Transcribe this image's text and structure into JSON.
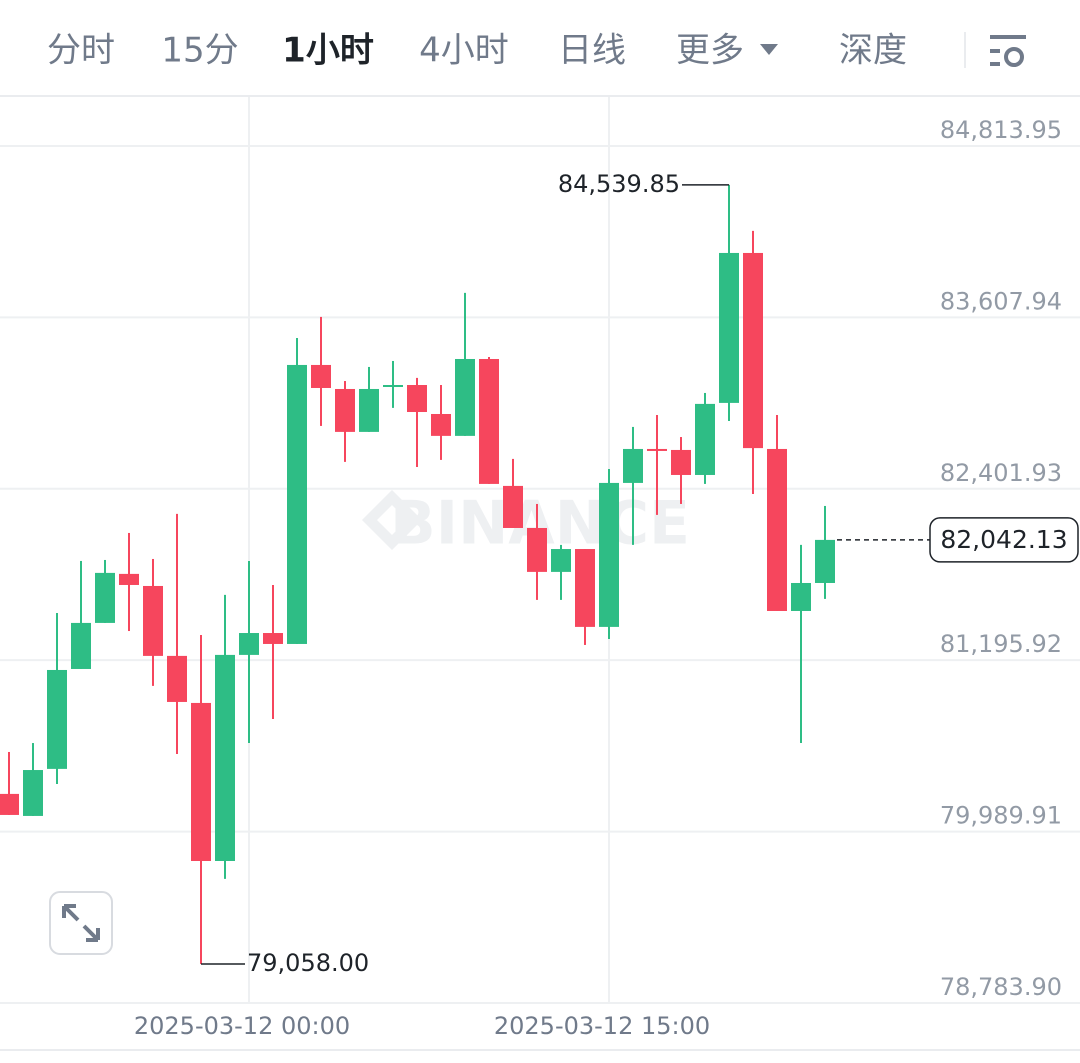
{
  "tabs": [
    {
      "label": "分时"
    },
    {
      "label": "15分"
    },
    {
      "label": "1小时",
      "active": true
    },
    {
      "label": "4小时"
    },
    {
      "label": "日线"
    },
    {
      "label": "更多"
    },
    {
      "label": "深度"
    }
  ],
  "chart_data": {
    "type": "candlestick",
    "watermark": "BINANCE",
    "grid": true,
    "up_color": "#2ebd85",
    "down_color": "#f6465d",
    "categories": [
      null,
      null,
      null,
      null,
      null,
      null,
      null,
      null,
      null,
      null,
      "2025-03-12 00:00",
      null,
      null,
      null,
      null,
      null,
      null,
      null,
      null,
      null,
      null,
      null,
      null,
      null,
      null,
      "2025-03-12 15:00",
      null,
      null,
      null,
      null,
      null,
      null,
      null,
      null,
      null
    ],
    "open": [
      80255,
      80100,
      80431,
      81134,
      81458,
      81803,
      81718,
      81226,
      80895,
      79783,
      81233,
      81387,
      81310,
      83273,
      83104,
      82802,
      83118,
      83132,
      82928,
      82774,
      83315,
      82422,
      82126,
      81817,
      81978,
      81430,
      82443,
      82682,
      82675,
      82499,
      83006,
      84061,
      82682,
      81542,
      81739
    ],
    "high": [
      80550,
      80613,
      81528,
      81894,
      81901,
      82091,
      81908,
      82225,
      81373,
      81655,
      81894,
      81725,
      83463,
      83611,
      83160,
      83259,
      83301,
      83182,
      83132,
      83780,
      83329,
      82612,
      82295,
      82007,
      81978,
      82541,
      82837,
      82921,
      82766,
      83076,
      84539.85,
      84216,
      82921,
      82007,
      82281
    ],
    "low": [
      80107,
      80100,
      80325,
      81134,
      81458,
      81401,
      81015,
      80536,
      79058,
      79657,
      80613,
      80782,
      81310,
      82844,
      82591,
      82802,
      82971,
      82555,
      82605,
      82774,
      82436,
      82126,
      81620,
      81620,
      81303,
      81345,
      82007,
      82218,
      82295,
      82436,
      82879,
      82365,
      81542,
      80613,
      81627
    ],
    "close": [
      80107,
      80423,
      81127,
      81458,
      81810,
      81725,
      81226,
      80902,
      79783,
      81233,
      81387,
      81310,
      83273,
      83111,
      82802,
      83104,
      83132,
      82942,
      82774,
      83315,
      82436,
      82126,
      81817,
      81978,
      81430,
      82443,
      82682,
      82668,
      82499,
      82999,
      84061,
      82688,
      81542,
      81739,
      82042.13
    ],
    "ylim": [
      78783.9,
      85158.3
    ],
    "yticks": [
      {
        "value": 84813.95,
        "label": "84,813.95"
      },
      {
        "value": 83607.94,
        "label": "83,607.94"
      },
      {
        "value": 82401.93,
        "label": "82,401.93"
      },
      {
        "value": 81195.92,
        "label": "81,195.92"
      },
      {
        "value": 79989.91,
        "label": "79,989.91"
      },
      {
        "value": 78783.9,
        "label": "78,783.90"
      }
    ],
    "high_label": {
      "value": 84539.85,
      "label": "84,539.85"
    },
    "low_label": {
      "value": 79058,
      "label": "79,058.00"
    },
    "last_price": {
      "value": 82042.13,
      "label": "82,042.13"
    }
  }
}
